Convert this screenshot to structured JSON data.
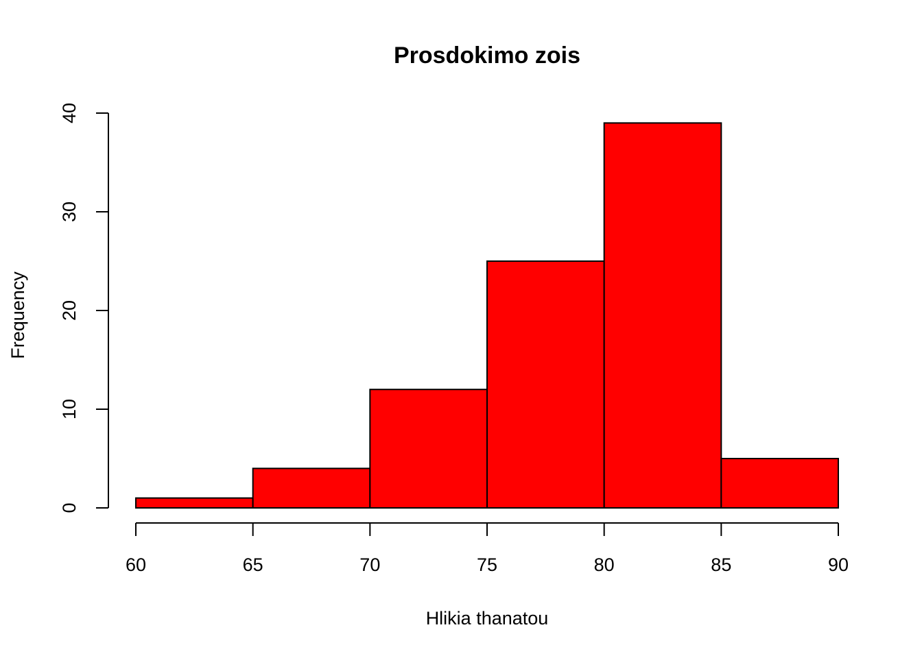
{
  "chart_data": {
    "type": "bar",
    "subtype": "histogram",
    "title": "Prosdokimo zois",
    "xlabel": "Hlikia thanatou",
    "ylabel": "Frequency",
    "bins": [
      {
        "from": 60,
        "to": 65,
        "count": 1
      },
      {
        "from": 65,
        "to": 70,
        "count": 4
      },
      {
        "from": 70,
        "to": 75,
        "count": 12
      },
      {
        "from": 75,
        "to": 80,
        "count": 25
      },
      {
        "from": 80,
        "to": 85,
        "count": 39
      },
      {
        "from": 85,
        "to": 90,
        "count": 5
      }
    ],
    "x_ticks": [
      60,
      65,
      70,
      75,
      80,
      85,
      90
    ],
    "y_ticks": [
      0,
      10,
      20,
      30,
      40
    ],
    "xlim": [
      60,
      90
    ],
    "ylim": [
      0,
      40
    ],
    "grid": false,
    "legend": "none",
    "bar_color": "#ff0000",
    "border_color": "#000000"
  }
}
